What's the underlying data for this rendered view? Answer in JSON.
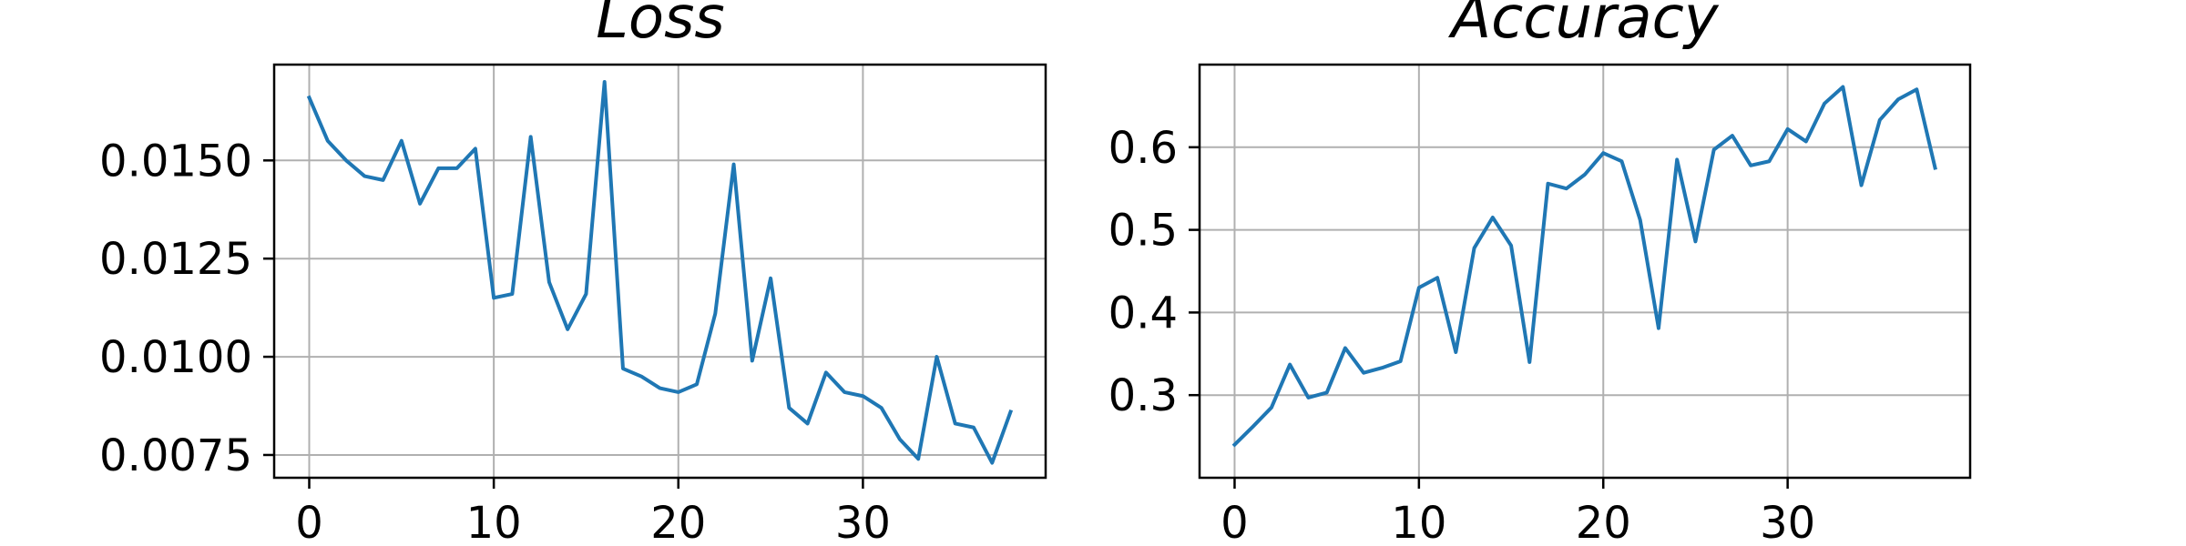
{
  "chart_data": [
    {
      "type": "line",
      "title": "Loss",
      "xlabel": "",
      "ylabel": "",
      "xlim": [
        -1.9,
        39.9
      ],
      "ylim": [
        0.00692,
        0.01744
      ],
      "xticks": [
        0,
        10,
        20,
        30
      ],
      "xtick_labels": [
        "0",
        "10",
        "20",
        "30"
      ],
      "yticks": [
        0.0075,
        0.01,
        0.0125,
        0.015
      ],
      "ytick_labels": [
        "0.0075",
        "0.0100",
        "0.0125",
        "0.0150"
      ],
      "grid": true,
      "color": "#1f77b4",
      "series": [
        {
          "x": [
            0,
            1,
            2,
            3,
            4,
            5,
            6,
            7,
            8,
            9,
            10,
            11,
            12,
            13,
            14,
            15,
            16,
            17,
            18,
            19,
            20,
            21,
            22,
            23,
            24,
            25,
            26,
            27,
            28,
            29,
            30,
            31,
            32,
            33,
            34,
            35,
            36,
            37,
            38
          ],
          "y": [
            0.0166,
            0.0155,
            0.015,
            0.0146,
            0.0145,
            0.0155,
            0.0139,
            0.0148,
            0.0148,
            0.0153,
            0.0115,
            0.0116,
            0.0156,
            0.0119,
            0.0107,
            0.0116,
            0.017,
            0.0097,
            0.0095,
            0.0092,
            0.0091,
            0.0093,
            0.0111,
            0.0149,
            0.0099,
            0.012,
            0.0087,
            0.0083,
            0.0096,
            0.0091,
            0.009,
            0.0087,
            0.0079,
            0.0074,
            0.01,
            0.0083,
            0.0082,
            0.0073,
            0.0086
          ]
        }
      ]
    },
    {
      "type": "line",
      "title": "Accuracy",
      "xlabel": "",
      "ylabel": "",
      "xlim": [
        -1.9,
        39.9
      ],
      "ylim": [
        0.2,
        0.7
      ],
      "xticks": [
        0,
        10,
        20,
        30
      ],
      "xtick_labels": [
        "0",
        "10",
        "20",
        "30"
      ],
      "yticks": [
        0.3,
        0.4,
        0.5,
        0.6
      ],
      "ytick_labels": [
        "0.3",
        "0.4",
        "0.5",
        "0.6"
      ],
      "grid": true,
      "color": "#1f77b4",
      "series": [
        {
          "x": [
            0,
            1,
            2,
            3,
            4,
            5,
            6,
            7,
            8,
            9,
            10,
            11,
            12,
            13,
            14,
            15,
            16,
            17,
            18,
            19,
            20,
            21,
            22,
            23,
            24,
            25,
            26,
            27,
            28,
            29,
            30,
            31,
            32,
            33,
            34,
            35,
            36,
            37,
            38
          ],
          "y": [
            0.24,
            0.262,
            0.285,
            0.337,
            0.297,
            0.303,
            0.357,
            0.327,
            0.333,
            0.341,
            0.43,
            0.442,
            0.352,
            0.478,
            0.515,
            0.481,
            0.34,
            0.556,
            0.55,
            0.567,
            0.593,
            0.583,
            0.512,
            0.381,
            0.585,
            0.486,
            0.597,
            0.614,
            0.578,
            0.583,
            0.622,
            0.607,
            0.653,
            0.673,
            0.554,
            0.633,
            0.658,
            0.67,
            0.575
          ]
        }
      ]
    }
  ]
}
